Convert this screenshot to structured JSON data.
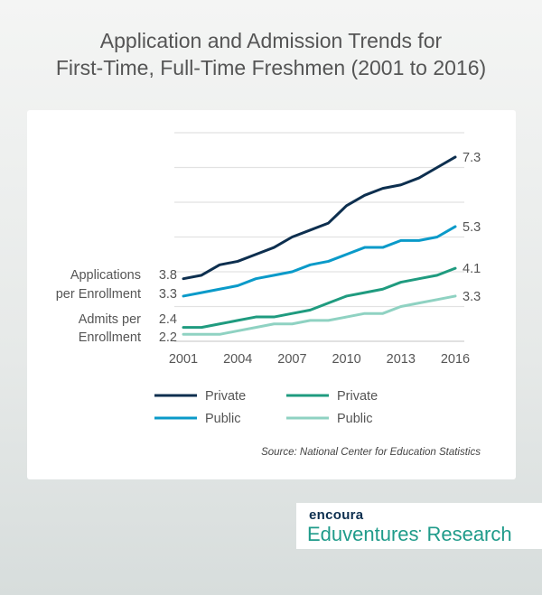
{
  "title_line1": "Application and Admission Trends for",
  "title_line2": "First-Time, Full-Time Freshmen (2001 to 2016)",
  "source": "Source: National Center for Education Statistics",
  "logo": {
    "brand": "encoura",
    "name": "Eduventures",
    "suffix": " Research"
  },
  "colors": {
    "private_apps": "#0d2f4f",
    "public_apps": "#0a9ac9",
    "private_admits": "#1f9b7f",
    "public_admits": "#8fd2c2"
  },
  "chart_data": {
    "type": "line",
    "title": "Application and Admission Trends for First-Time, Full-Time Freshmen (2001 to 2016)",
    "x": [
      2001,
      2002,
      2003,
      2004,
      2005,
      2006,
      2007,
      2008,
      2009,
      2010,
      2011,
      2012,
      2013,
      2014,
      2015,
      2016
    ],
    "xticks": [
      "2001",
      "2004",
      "2007",
      "2010",
      "2013",
      "2016"
    ],
    "ylim": [
      2,
      8
    ],
    "grid": true,
    "legend": "bottom",
    "group_labels": [
      "Applications per Enrollment",
      "Admits per Enrollment"
    ],
    "series": [
      {
        "name": "Private",
        "group": "Applications per Enrollment",
        "start_label": "3.8",
        "end_label": "7.3",
        "values": [
          3.8,
          3.9,
          4.2,
          4.3,
          4.5,
          4.7,
          5.0,
          5.2,
          5.4,
          5.9,
          6.2,
          6.4,
          6.5,
          6.7,
          7.0,
          7.3
        ]
      },
      {
        "name": "Public",
        "group": "Applications per Enrollment",
        "start_label": "3.3",
        "end_label": "5.3",
        "values": [
          3.3,
          3.4,
          3.5,
          3.6,
          3.8,
          3.9,
          4.0,
          4.2,
          4.3,
          4.5,
          4.7,
          4.7,
          4.9,
          4.9,
          5.0,
          5.3
        ]
      },
      {
        "name": "Private",
        "group": "Admits per Enrollment",
        "start_label": "2.4",
        "end_label": "4.1",
        "values": [
          2.4,
          2.4,
          2.5,
          2.6,
          2.7,
          2.7,
          2.8,
          2.9,
          3.1,
          3.3,
          3.4,
          3.5,
          3.7,
          3.8,
          3.9,
          4.1
        ]
      },
      {
        "name": "Public",
        "group": "Admits per Enrollment",
        "start_label": "2.2",
        "end_label": "3.3",
        "values": [
          2.2,
          2.2,
          2.2,
          2.3,
          2.4,
          2.5,
          2.5,
          2.6,
          2.6,
          2.7,
          2.8,
          2.8,
          3.0,
          3.1,
          3.2,
          3.3
        ]
      }
    ]
  }
}
